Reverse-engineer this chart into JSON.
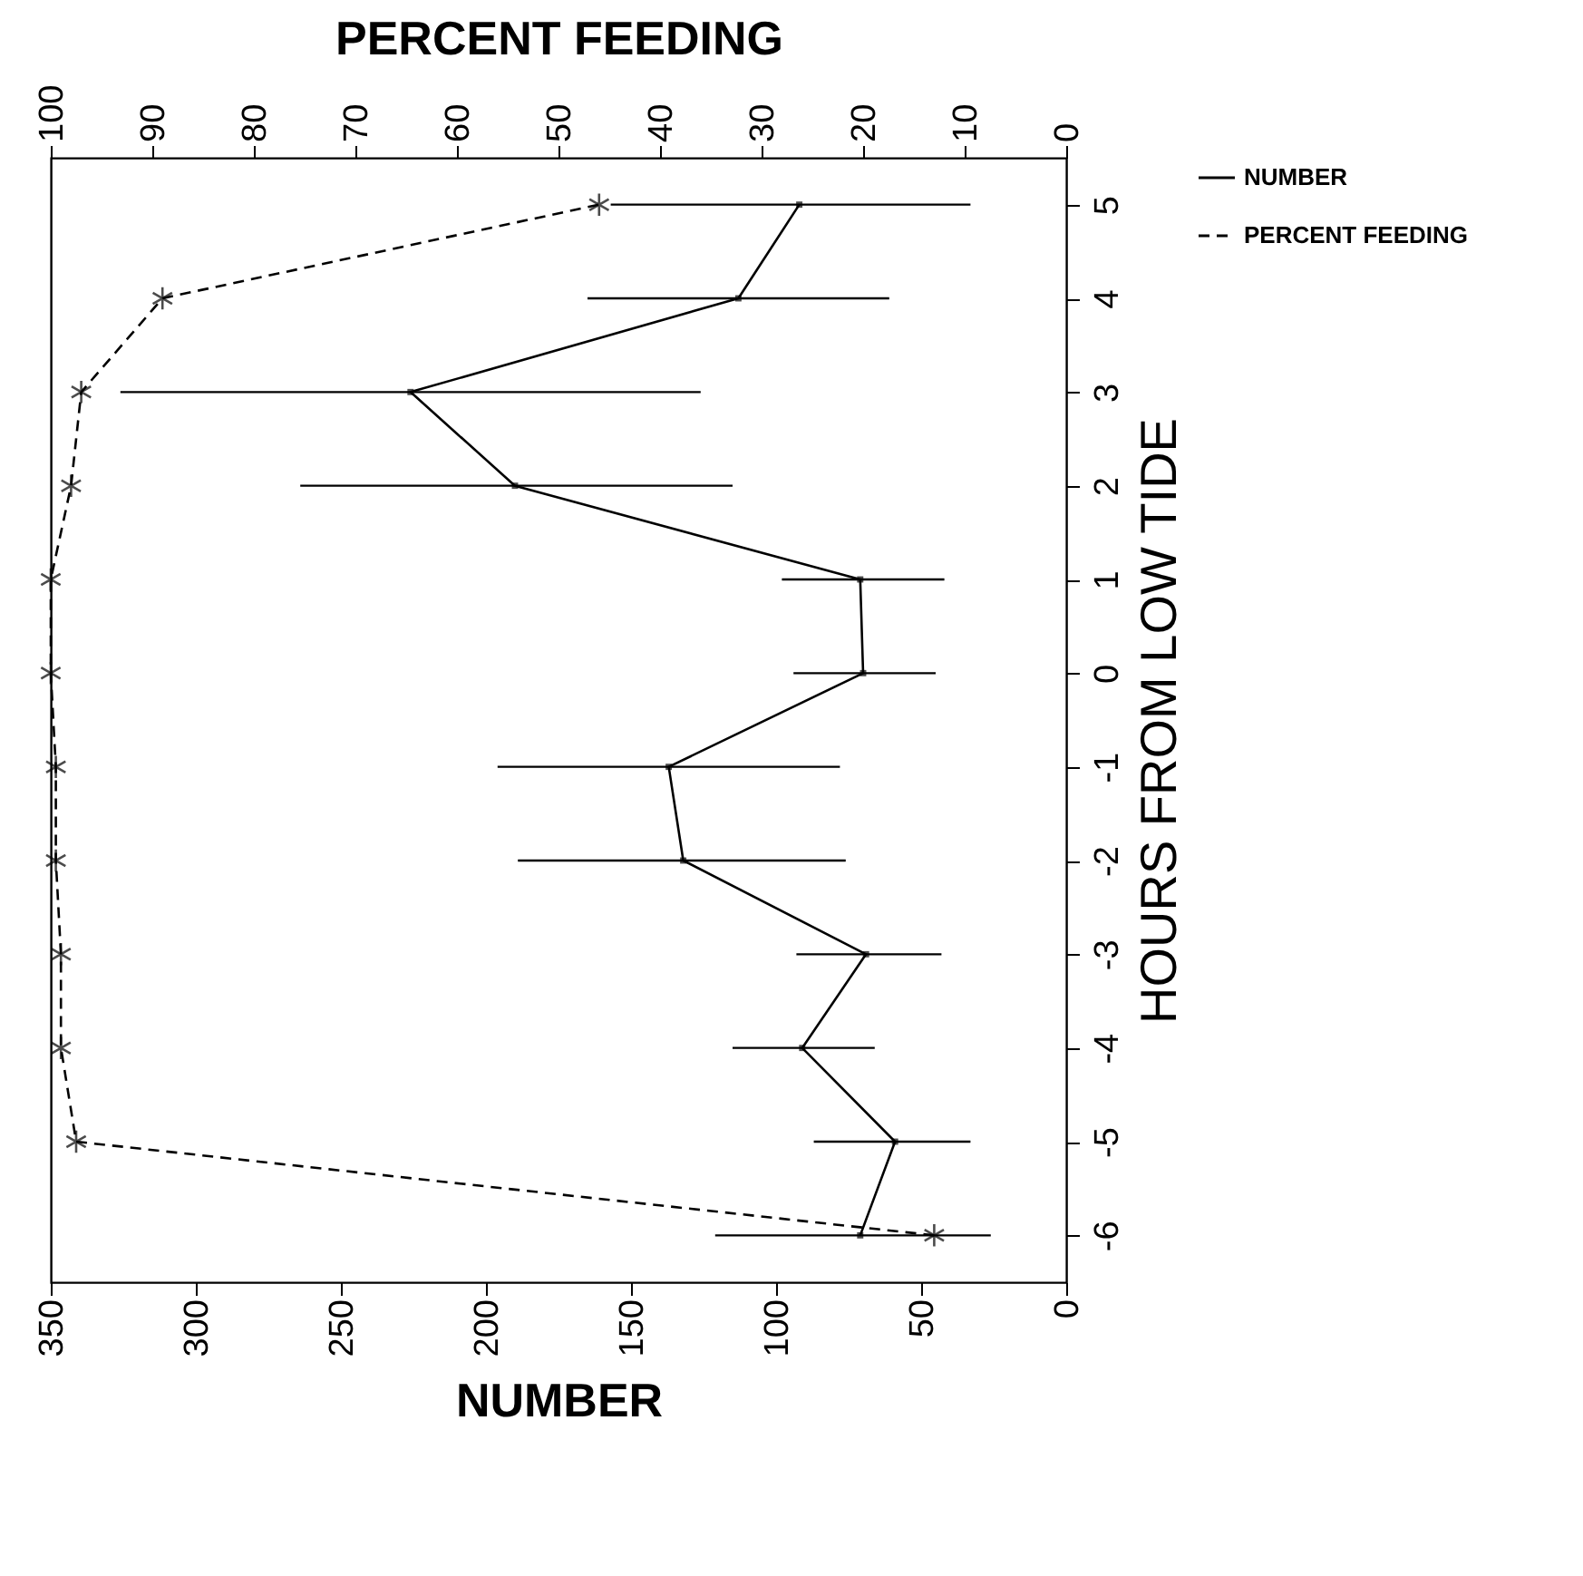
{
  "chart_data": {
    "type": "line",
    "xlabel": "NUMBER",
    "x2label": "PERCENT FEEDING",
    "ylabel": "HOURS FROM LOW TIDE",
    "xlim": [
      350,
      0
    ],
    "xticks": [
      0,
      50,
      100,
      150,
      200,
      250,
      300,
      350
    ],
    "x2lim": [
      100,
      0
    ],
    "x2ticks": [
      0,
      10,
      20,
      30,
      40,
      50,
      60,
      70,
      80,
      90,
      100
    ],
    "ylim": [
      -6.5,
      5.5
    ],
    "yticks": [
      -6,
      -5,
      -4,
      -3,
      -2,
      -1,
      0,
      1,
      2,
      3,
      4,
      5
    ],
    "legend": "right",
    "series": [
      {
        "name": "NUMBER",
        "color": "#000000",
        "marker": "square",
        "line_style": "solid",
        "x": [
          71,
          59,
          91,
          69,
          132,
          137,
          70,
          71,
          190,
          226,
          113,
          92
        ],
        "values": [
          -6,
          -5,
          -4,
          -3,
          -2,
          -1,
          0,
          1,
          2,
          3,
          4,
          5
        ],
        "xerrors": [
          [
            26,
            121
          ],
          [
            33,
            87
          ],
          [
            66,
            115
          ],
          [
            43,
            93
          ],
          [
            76,
            189
          ],
          [
            78,
            196
          ],
          [
            45,
            94
          ],
          [
            42,
            98
          ],
          [
            115,
            264
          ],
          [
            126,
            326
          ],
          [
            61,
            165
          ],
          [
            33,
            157
          ]
        ]
      },
      {
        "name": "PERCENT FEEDING",
        "color": "#000000",
        "axis": "x2",
        "marker": "cross",
        "line_style": "dashed",
        "x": [
          13,
          97.5,
          99,
          99,
          99.5,
          99.5,
          100,
          100,
          98,
          97,
          89,
          46
        ],
        "values": [
          -6,
          -5,
          -4,
          -3,
          -2,
          -1,
          0,
          1,
          2,
          3,
          4,
          5
        ]
      }
    ]
  }
}
